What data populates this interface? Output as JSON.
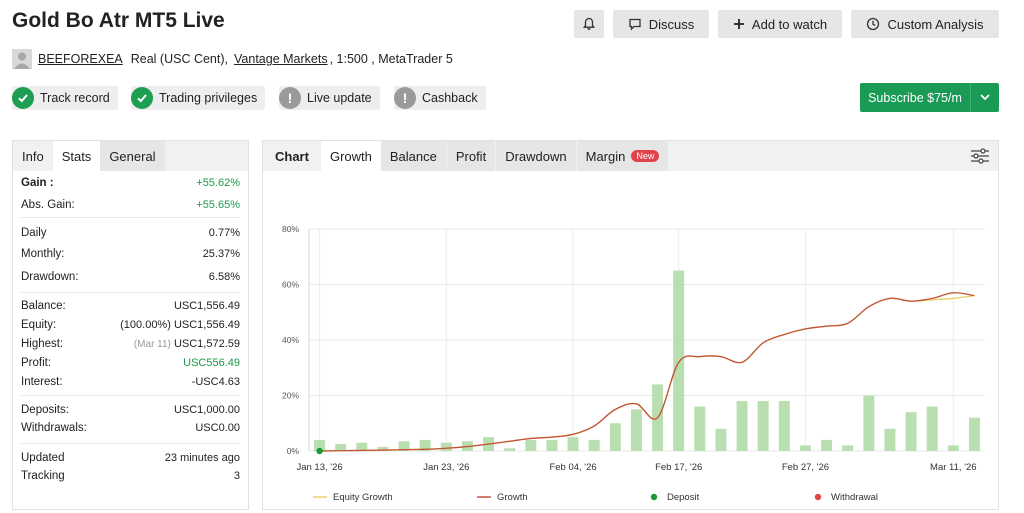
{
  "title": "Gold Bo Atr MT5 Live",
  "header_buttons": {
    "discuss": "Discuss",
    "watch": "Add to watch",
    "analysis": "Custom Analysis"
  },
  "account": {
    "username": "BEEFOREXEA",
    "type": "Real (USC Cent),",
    "broker": "Vantage Markets",
    "leverage_platform": ", 1:500 , MetaTrader 5"
  },
  "badges": [
    {
      "label": "Track record",
      "status": "ok"
    },
    {
      "label": "Trading privileges",
      "status": "ok"
    },
    {
      "label": "Live update",
      "status": "info"
    },
    {
      "label": "Cashback",
      "status": "info"
    }
  ],
  "subscribe": {
    "label": "Subscribe $75/m"
  },
  "left_tabs": [
    "Info",
    "Stats",
    "General"
  ],
  "stats": {
    "gain_label": "Gain :",
    "gain": "+55.62%",
    "abs_gain_label": "Abs. Gain:",
    "abs_gain": "+55.65%",
    "daily_label": "Daily",
    "daily": "0.77%",
    "monthly_label": "Monthly:",
    "monthly": "25.37%",
    "drawdown_label": "Drawdown:",
    "drawdown": "6.58%",
    "balance_label": "Balance:",
    "balance": "USC1,556.49",
    "equity_label": "Equity:",
    "equity_pct": "(100.00%)",
    "equity": "USC1,556.49",
    "highest_label": "Highest:",
    "highest_date": "(Mar 11)",
    "highest": "USC1,572.59",
    "profit_label": "Profit:",
    "profit": "USC556.49",
    "interest_label": "Interest:",
    "interest": "-USC4.63",
    "deposits_label": "Deposits:",
    "deposits": "USC1,000.00",
    "withdrawals_label": "Withdrawals:",
    "withdrawals": "USC0.00",
    "updated_label": "Updated",
    "updated": "23 minutes ago",
    "tracking_label": "Tracking",
    "tracking": "3"
  },
  "chart_tabs": {
    "chart": "Chart",
    "growth": "Growth",
    "balance": "Balance",
    "profit": "Profit",
    "drawdown": "Drawdown",
    "margin": "Margin",
    "new": "New"
  },
  "colors": {
    "accent": "#199a55",
    "bar": "#b9dfb1",
    "growth": "#c0543a",
    "equity": "#e9d36a",
    "deposit": "#1a9a3a",
    "withdrawal": "#e0434b"
  },
  "chart_data": {
    "type": "bar",
    "y_ticks": [
      "0%",
      "20%",
      "40%",
      "60%",
      "80%"
    ],
    "ylim": [
      0,
      80
    ],
    "x_tick_labels": [
      "Jan 13, '26",
      "Jan 23, '26",
      "Feb 04, '26",
      "Feb 17, '26",
      "Feb 27, '26",
      "Mar 11, '26"
    ],
    "legend": [
      "Equity Growth",
      "Growth",
      "Deposit",
      "Withdrawal"
    ],
    "legend_position": "bottom",
    "bars": [
      4,
      2.5,
      3,
      1.5,
      3.5,
      4,
      3,
      3.5,
      5,
      1,
      4,
      4,
      5,
      4,
      10,
      15,
      24,
      65,
      16,
      8,
      18,
      18,
      18,
      2,
      4,
      2,
      20,
      8,
      14,
      16,
      2,
      12
    ],
    "growth": [
      0,
      0.1,
      0.2,
      0.3,
      0.5,
      0.6,
      1,
      1.6,
      2.5,
      3.5,
      4.5,
      5,
      6,
      9,
      15,
      17,
      12,
      32,
      34,
      34,
      32,
      39,
      42,
      44,
      45,
      46,
      52,
      55,
      54,
      55,
      57,
      56
    ],
    "equity_growth": [
      0,
      0.1,
      0.2,
      0.3,
      0.5,
      0.6,
      1,
      1.6,
      2.5,
      3.5,
      4.5,
      5,
      6,
      9,
      15,
      17,
      12,
      32,
      34,
      34,
      32,
      39,
      42,
      44,
      45,
      46,
      52,
      55,
      54,
      54.5,
      55,
      56
    ],
    "deposit_points": [
      0
    ]
  }
}
